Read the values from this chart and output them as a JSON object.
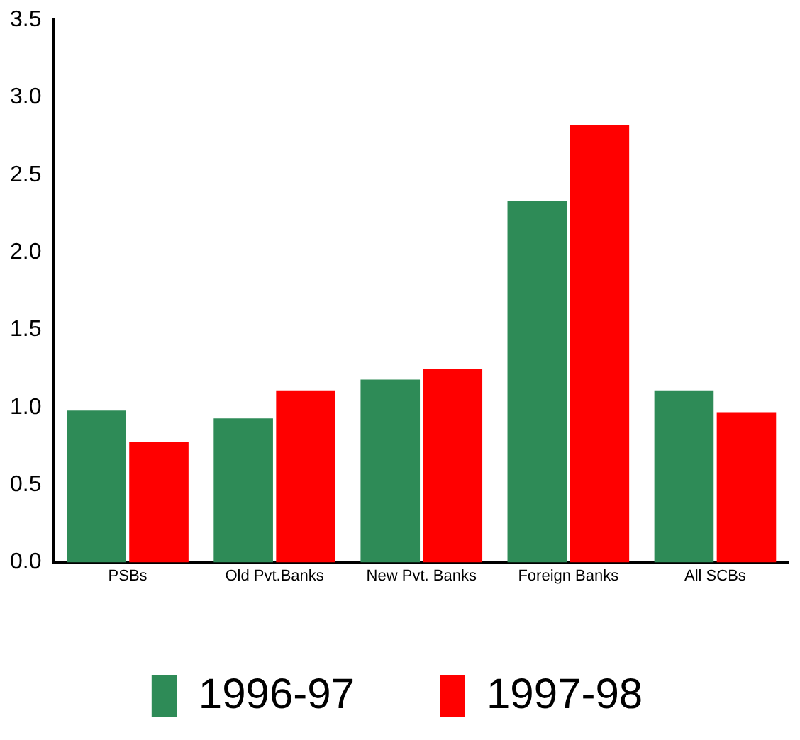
{
  "chart_data": {
    "type": "bar",
    "categories": [
      "PSBs",
      "Old Pvt.Banks",
      "New Pvt. Banks",
      "Foreign Banks",
      "All SCBs"
    ],
    "series": [
      {
        "name": "1996-97",
        "color": "#2e8b57",
        "values": [
          0.98,
          0.93,
          1.18,
          2.33,
          1.11
        ]
      },
      {
        "name": "1997-98",
        "color": "#ff0000",
        "values": [
          0.78,
          1.11,
          1.25,
          2.82,
          0.97
        ]
      }
    ],
    "ylim": [
      0,
      3.5
    ],
    "yticks": [
      {
        "value": 0,
        "label": "0.0"
      },
      0.5,
      {
        "value": 1,
        "label": "1.0"
      },
      1.5,
      {
        "value": 2,
        "label": "2.0"
      },
      2.5,
      {
        "value": 3,
        "label": "3.0"
      },
      3.5
    ],
    "grid": false,
    "legend": "bottom"
  }
}
